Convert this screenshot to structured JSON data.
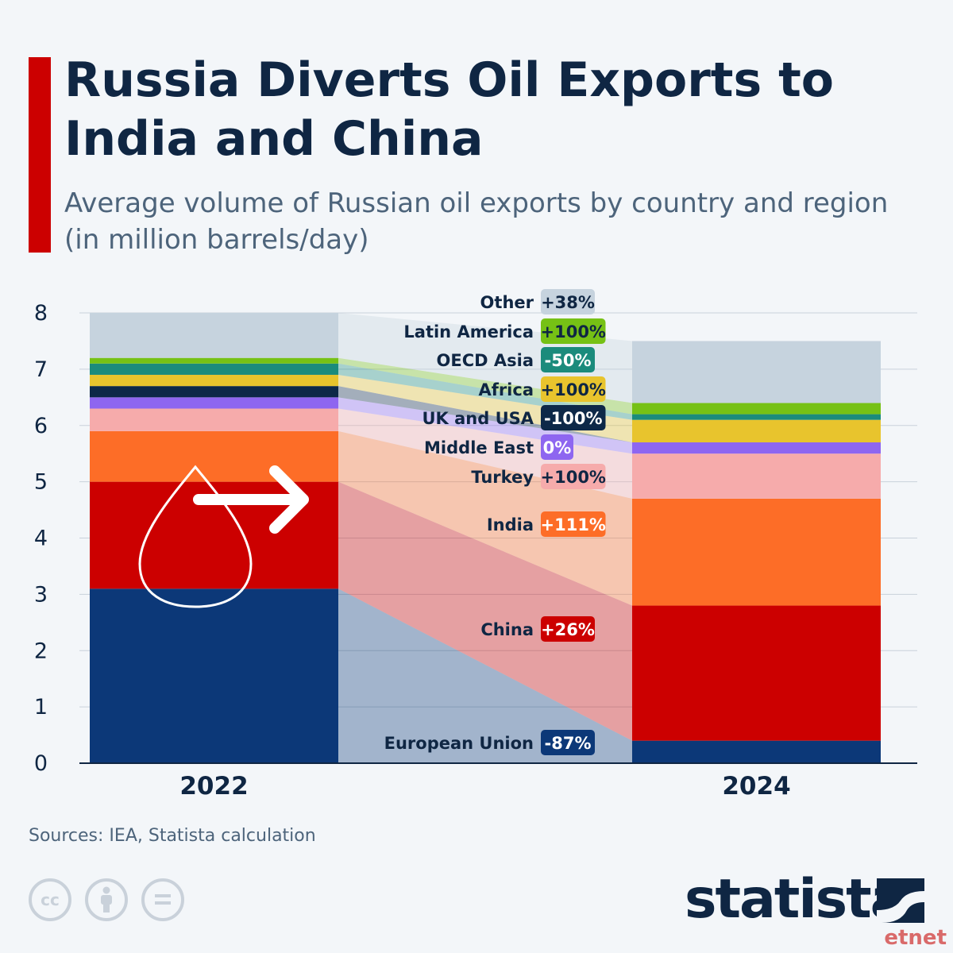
{
  "title": "Russia Diverts Oil Exports to India and China",
  "subtitle": "Average volume of Russian oil exports by country and region (in million barrels/day)",
  "source": "Sources: IEA, Statista calculation",
  "brand": "statista",
  "watermark": "etnet",
  "license_icons": [
    "cc",
    "by",
    "nd"
  ],
  "colors": {
    "accent": "#cc0000",
    "title": "#0f2643",
    "background": "#f3f6f9"
  },
  "chart_data": {
    "type": "bar",
    "stacked": true,
    "categories": [
      "2022",
      "2024"
    ],
    "ylim": [
      0,
      8
    ],
    "yticks": [
      0,
      1,
      2,
      3,
      4,
      5,
      6,
      7,
      8
    ],
    "grid": true,
    "series": [
      {
        "name": "European Union",
        "values": [
          3.1,
          0.4
        ],
        "change": "-87%",
        "color": "#0c3878"
      },
      {
        "name": "China",
        "values": [
          1.9,
          2.4
        ],
        "change": "+26%",
        "color": "#cc0000"
      },
      {
        "name": "India",
        "values": [
          0.9,
          1.9
        ],
        "change": "+111%",
        "color": "#fd6d27"
      },
      {
        "name": "Turkey",
        "values": [
          0.4,
          0.8
        ],
        "change": "+100%",
        "color": "#f6abab"
      },
      {
        "name": "Middle East",
        "values": [
          0.2,
          0.2
        ],
        "change": "0%",
        "color": "#8e66f0"
      },
      {
        "name": "UK and USA",
        "values": [
          0.2,
          0.0
        ],
        "change": "-100%",
        "color": "#0d2848"
      },
      {
        "name": "Africa",
        "values": [
          0.2,
          0.4
        ],
        "change": "+100%",
        "color": "#e8c42d"
      },
      {
        "name": "OECD Asia",
        "values": [
          0.2,
          0.1
        ],
        "change": "-50%",
        "color": "#1b8b7c"
      },
      {
        "name": "Latin America",
        "values": [
          0.1,
          0.2
        ],
        "change": "+100%",
        "color": "#76c115"
      },
      {
        "name": "Other",
        "values": [
          0.8,
          1.1
        ],
        "change": "+38%",
        "color": "#c6d3de"
      }
    ]
  }
}
